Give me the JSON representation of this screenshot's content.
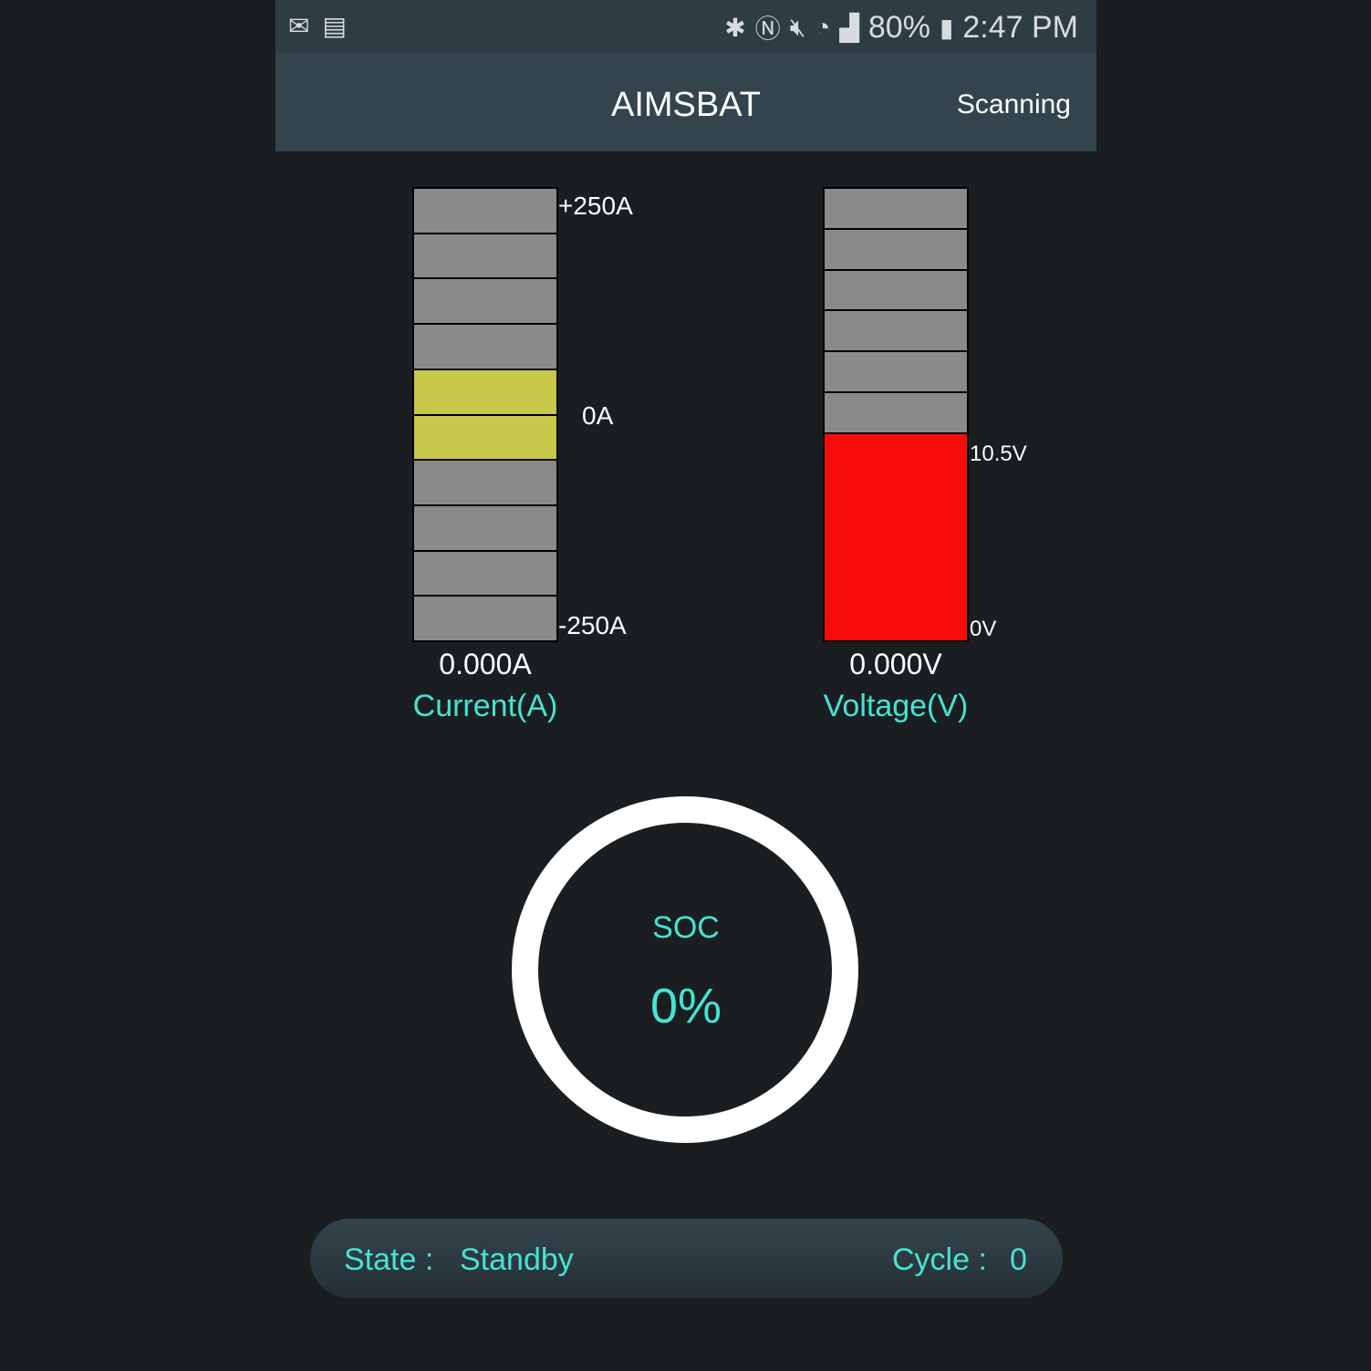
{
  "status_bar": {
    "left_icons": [
      "gallery-mail-icon",
      "sim-x-icon"
    ],
    "right_icons": [
      "bluetooth-icon",
      "nfc-icon",
      "mute-icon",
      "wifi-icon",
      "signal-icon"
    ],
    "battery": "80%",
    "time": "2:47 PM"
  },
  "toolbar": {
    "title": "AIMSBAT",
    "status": "Scanning"
  },
  "current": {
    "max_label": "+250A",
    "zero_label": "0A",
    "min_label": "-250A",
    "value": "0.000A",
    "caption": "Current(A)",
    "segments": 10,
    "active_segments": [
      4,
      5
    ],
    "active_color": "#c8c84a"
  },
  "voltage": {
    "high_label": "10.5V",
    "low_label": "0V",
    "value": "0.000V",
    "caption": "Voltage(V)",
    "fill_color": "#f80b0b"
  },
  "soc": {
    "label": "SOC",
    "value": "0%"
  },
  "footer": {
    "state_label": "State :",
    "state_value": "Standby",
    "cycle_label": "Cycle :",
    "cycle_value": "0"
  },
  "colors": {
    "accent": "#46e3d2",
    "toolbar": "#33444d",
    "background": "#1a1e21"
  }
}
